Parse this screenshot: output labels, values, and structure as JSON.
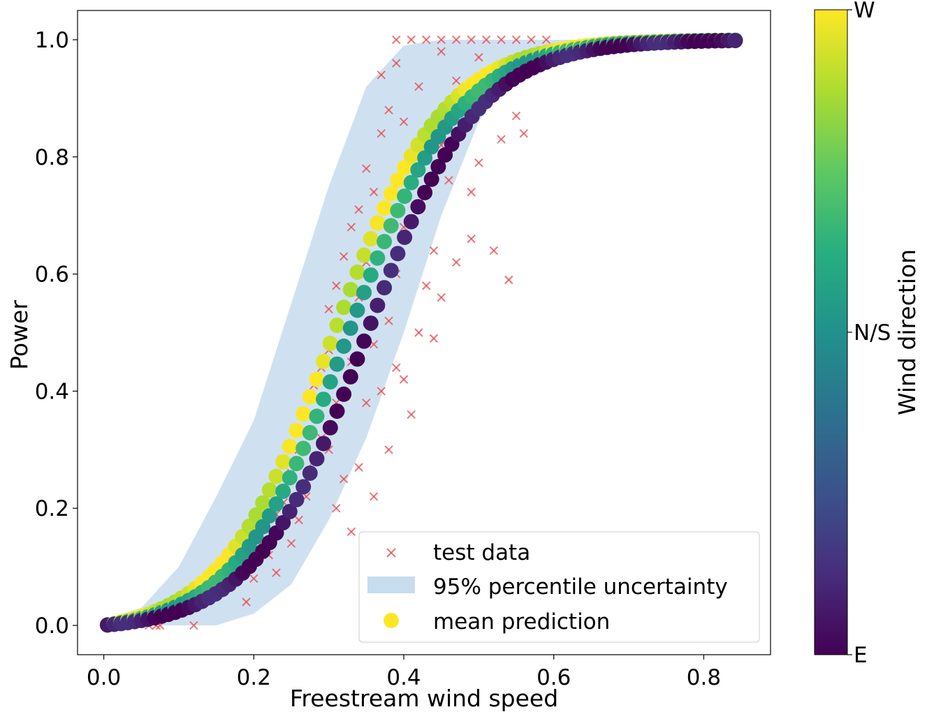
{
  "chart_data": {
    "type": "scatter",
    "xlabel": "Freestream wind speed",
    "ylabel": "Power",
    "xlim": [
      -0.035,
      0.889
    ],
    "ylim": [
      -0.05,
      1.05
    ],
    "x_ticks": [
      0.0,
      0.2,
      0.4,
      0.6,
      0.8
    ],
    "x_tick_labels": [
      "0.0",
      "0.2",
      "0.4",
      "0.6",
      "0.8"
    ],
    "y_ticks": [
      0.0,
      0.2,
      0.4,
      0.6,
      0.8,
      1.0
    ],
    "y_tick_labels": [
      "0.0",
      "0.2",
      "0.4",
      "0.6",
      "0.8",
      "1.0"
    ],
    "grid": false,
    "legend_position": "lower-right",
    "legend": [
      {
        "label": "test data",
        "marker": "x",
        "color": "#e8474a"
      },
      {
        "label": "95% percentile uncertainty",
        "marker": "band",
        "color": "#c7dced"
      },
      {
        "label": "mean prediction",
        "marker": "circle",
        "color": "#fde725"
      }
    ],
    "series": [
      {
        "name": "95% percentile uncertainty",
        "kind": "band",
        "color": "#c7dced",
        "x": [
          0.0,
          0.05,
          0.1,
          0.15,
          0.2,
          0.25,
          0.3,
          0.35,
          0.4,
          0.45,
          0.5,
          0.55,
          0.6,
          0.65,
          0.7
        ],
        "lower": [
          0.0,
          0.0,
          0.0,
          0.0,
          0.02,
          0.07,
          0.18,
          0.32,
          0.5,
          0.7,
          0.86,
          0.95,
          0.985,
          0.997,
          1.0
        ],
        "upper": [
          0.01,
          0.03,
          0.1,
          0.22,
          0.35,
          0.55,
          0.75,
          0.92,
          0.99,
          1.0,
          1.0,
          1.0,
          1.0,
          1.0,
          1.0
        ]
      },
      {
        "name": "test data",
        "kind": "scatter-x",
        "color": "#e8474a",
        "points": [
          [
            0.06,
            0.0
          ],
          [
            0.07,
            0.0
          ],
          [
            0.075,
            0.0
          ],
          [
            0.065,
            0.005
          ],
          [
            0.08,
            0.02
          ],
          [
            0.09,
            0.03
          ],
          [
            0.12,
            0.0
          ],
          [
            0.13,
            0.04
          ],
          [
            0.15,
            0.06
          ],
          [
            0.16,
            0.09
          ],
          [
            0.17,
            0.11
          ],
          [
            0.18,
            0.13
          ],
          [
            0.19,
            0.04
          ],
          [
            0.2,
            0.08
          ],
          [
            0.21,
            0.14
          ],
          [
            0.22,
            0.12
          ],
          [
            0.23,
            0.09
          ],
          [
            0.23,
            0.19
          ],
          [
            0.24,
            0.21
          ],
          [
            0.25,
            0.14
          ],
          [
            0.25,
            0.26
          ],
          [
            0.26,
            0.18
          ],
          [
            0.26,
            0.3
          ],
          [
            0.27,
            0.22
          ],
          [
            0.27,
            0.36
          ],
          [
            0.28,
            0.28
          ],
          [
            0.28,
            0.41
          ],
          [
            0.29,
            0.32
          ],
          [
            0.29,
            0.44
          ],
          [
            0.3,
            0.3
          ],
          [
            0.3,
            0.47
          ],
          [
            0.3,
            0.54
          ],
          [
            0.31,
            0.2
          ],
          [
            0.31,
            0.38
          ],
          [
            0.31,
            0.58
          ],
          [
            0.32,
            0.25
          ],
          [
            0.32,
            0.51
          ],
          [
            0.32,
            0.63
          ],
          [
            0.33,
            0.16
          ],
          [
            0.33,
            0.45
          ],
          [
            0.33,
            0.68
          ],
          [
            0.34,
            0.27
          ],
          [
            0.34,
            0.56
          ],
          [
            0.34,
            0.71
          ],
          [
            0.35,
            0.38
          ],
          [
            0.35,
            0.62
          ],
          [
            0.35,
            0.78
          ],
          [
            0.36,
            0.22
          ],
          [
            0.36,
            0.48
          ],
          [
            0.36,
            0.74
          ],
          [
            0.37,
            0.4
          ],
          [
            0.37,
            0.84
          ],
          [
            0.37,
            0.94
          ],
          [
            0.38,
            0.3
          ],
          [
            0.38,
            0.52
          ],
          [
            0.38,
            0.88
          ],
          [
            0.39,
            0.44
          ],
          [
            0.39,
            0.6
          ],
          [
            0.39,
            0.96
          ],
          [
            0.4,
            0.42
          ],
          [
            0.4,
            0.68
          ],
          [
            0.4,
            0.86
          ],
          [
            0.41,
            0.36
          ],
          [
            0.41,
            0.78
          ],
          [
            0.42,
            0.5
          ],
          [
            0.42,
            0.72
          ],
          [
            0.42,
            0.92
          ],
          [
            0.43,
            0.58
          ],
          [
            0.43,
            0.84
          ],
          [
            0.44,
            0.64
          ],
          [
            0.44,
            0.49
          ],
          [
            0.45,
            0.56
          ],
          [
            0.45,
            0.82
          ],
          [
            0.45,
            0.98
          ],
          [
            0.46,
            0.76
          ],
          [
            0.47,
            0.62
          ],
          [
            0.47,
            0.93
          ],
          [
            0.48,
            0.85
          ],
          [
            0.49,
            0.66
          ],
          [
            0.49,
            0.74
          ],
          [
            0.5,
            0.79
          ],
          [
            0.5,
            0.97
          ],
          [
            0.51,
            0.89
          ],
          [
            0.52,
            0.64
          ],
          [
            0.53,
            0.83
          ],
          [
            0.54,
            0.59
          ],
          [
            0.55,
            0.87
          ],
          [
            0.56,
            0.84
          ],
          [
            0.39,
            1.0
          ],
          [
            0.41,
            1.0
          ],
          [
            0.43,
            1.0
          ],
          [
            0.45,
            1.0
          ],
          [
            0.47,
            1.0
          ],
          [
            0.49,
            1.0
          ],
          [
            0.51,
            1.0
          ],
          [
            0.53,
            1.0
          ],
          [
            0.55,
            1.0
          ],
          [
            0.57,
            1.0
          ],
          [
            0.59,
            1.0
          ]
        ]
      },
      {
        "name": "mean prediction",
        "kind": "scatter-circle",
        "colormap": "viridis",
        "color_value": "Wind direction (0 = E, 0.5 = N/S, 1 = W)",
        "curves": [
          {
            "label": "west",
            "dir": 0.95,
            "x50": 0.305,
            "k": 13.5
          },
          {
            "label": "north-south",
            "dir": 0.6,
            "x50": 0.325,
            "k": 13.5
          },
          {
            "label": "east",
            "dir": 0.05,
            "x50": 0.35,
            "k": 13.5
          }
        ],
        "x_range": [
          0.0,
          0.85
        ]
      }
    ]
  },
  "colorbar": {
    "label": "Wind direction",
    "tick_labels": [
      "E",
      "N/S",
      "W"
    ],
    "tick_values": [
      0.0,
      0.5,
      1.0
    ],
    "colormap": "viridis"
  }
}
